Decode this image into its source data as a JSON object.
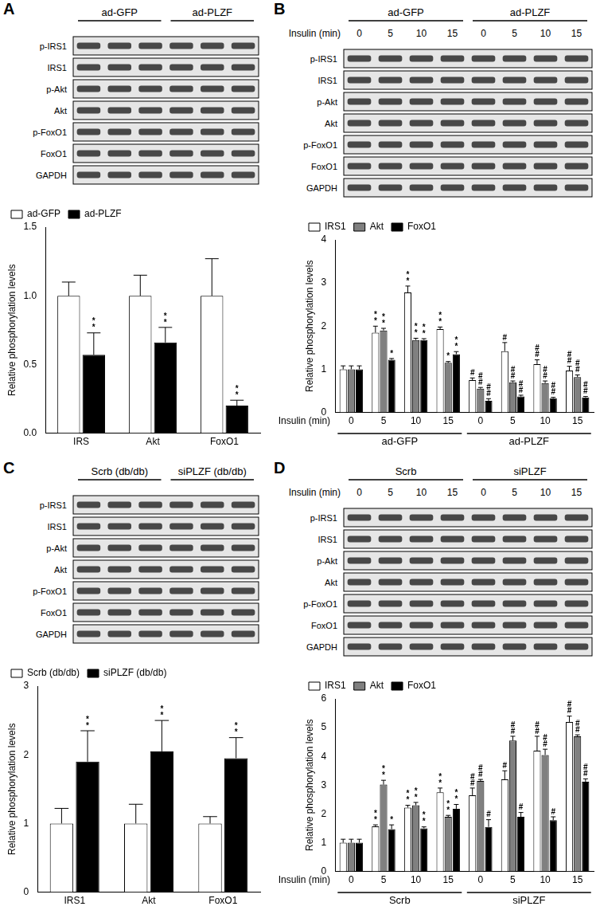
{
  "chart_data": [
    {
      "type": "bar",
      "title": "A",
      "categories": [
        "IRS",
        "Akt",
        "FoxO1"
      ],
      "y_label": "Relative phosphorylation levels",
      "ylim": [
        0,
        1.5
      ],
      "yticks": [
        {
          "value": 0,
          "label": "0.0"
        },
        {
          "value": 0.5,
          "label": "0.5"
        },
        {
          "value": 1,
          "label": "1.0"
        },
        {
          "value": 1.5,
          "label": "1.5"
        }
      ],
      "grid": false,
      "legend": "upper left",
      "series": [
        {
          "name": "ad-GFP",
          "color": "#ffffff",
          "values": [
            1,
            1,
            1
          ],
          "errors": [
            0.1,
            0.15,
            0.27
          ],
          "annotations": [
            null,
            null,
            null
          ]
        },
        {
          "name": "ad-PLZF",
          "color": "#000000",
          "values": [
            0.57,
            0.66,
            0.2
          ],
          "errors": [
            0.16,
            0.11,
            0.04
          ],
          "annotations": [
            "**",
            "**",
            "**"
          ]
        }
      ]
    },
    {
      "type": "bar",
      "title": "B",
      "categories": [
        "0",
        "5",
        "10",
        "15",
        "0",
        "5",
        "10",
        "15"
      ],
      "x_label": "Insulin (min)",
      "group_labels": [
        "ad-GFP",
        "ad-PLZF"
      ],
      "y_label": "Relative phosphorylation levels",
      "ylim": [
        0,
        4
      ],
      "yticks": [
        0,
        1,
        2,
        3,
        4
      ],
      "grid": false,
      "legend": "upper left",
      "series": [
        {
          "name": "IRS1",
          "color": "#ffffff",
          "values": [
            1,
            1.85,
            2.78,
            1.93,
            0.75,
            1.42,
            1.12,
            0.97
          ],
          "errors": [
            0.08,
            0.15,
            0.15,
            0.05,
            0.05,
            0.2,
            0.1,
            0.1
          ],
          "annotations": [
            null,
            "**",
            "**",
            "**",
            "#",
            "#",
            "##",
            "##"
          ]
        },
        {
          "name": "Akt",
          "color": "#808080",
          "values": [
            1,
            1.9,
            1.68,
            1.15,
            0.55,
            0.7,
            0.68,
            0.82
          ],
          "errors": [
            0.08,
            0.05,
            0.04,
            0.03,
            0.03,
            0.03,
            0.05,
            0.05
          ],
          "annotations": [
            null,
            "**",
            "**",
            "*",
            "##",
            "##",
            "##",
            "##"
          ]
        },
        {
          "name": "FoxO1",
          "color": "#000000",
          "values": [
            1,
            1.22,
            1.68,
            1.35,
            0.27,
            0.37,
            0.33,
            0.35
          ],
          "errors": [
            0.08,
            0.03,
            0.03,
            0.06,
            0.05,
            0.03,
            0.02,
            0.02
          ],
          "annotations": [
            null,
            "*",
            "**",
            "**",
            "##",
            "##",
            "##",
            "##"
          ]
        }
      ]
    },
    {
      "type": "bar",
      "title": "C",
      "categories": [
        "IRS1",
        "Akt",
        "FoxO1"
      ],
      "y_label": "Relative phosphorylation levels",
      "ylim": [
        0,
        3
      ],
      "yticks": [
        0,
        1,
        2,
        3
      ],
      "grid": false,
      "legend": "upper left",
      "series": [
        {
          "name": "Scrb (db/db)",
          "color": "#ffffff",
          "values": [
            1,
            1,
            1
          ],
          "errors": [
            0.22,
            0.28,
            0.1
          ],
          "annotations": [
            null,
            null,
            null
          ]
        },
        {
          "name": "siPLZF (db/db)",
          "color": "#000000",
          "values": [
            1.9,
            2.05,
            1.95
          ],
          "errors": [
            0.45,
            0.45,
            0.3
          ],
          "annotations": [
            "**",
            "**",
            "**"
          ]
        }
      ]
    },
    {
      "type": "bar",
      "title": "D",
      "categories": [
        "0",
        "5",
        "10",
        "15",
        "0",
        "5",
        "10",
        "15"
      ],
      "x_label": "Insulin (min)",
      "group_labels": [
        "Scrb",
        "siPLZF"
      ],
      "y_label": "Relative phosphorylation levels",
      "ylim": [
        0,
        6
      ],
      "yticks": [
        0,
        1,
        2,
        3,
        4,
        5,
        6
      ],
      "grid": false,
      "legend": "upper left",
      "series": [
        {
          "name": "IRS1",
          "color": "#ffffff",
          "values": [
            1,
            1.57,
            2.22,
            2.75,
            2.65,
            3.2,
            4.2,
            5.2
          ],
          "errors": [
            0.12,
            0.05,
            0.08,
            0.15,
            0.25,
            0.3,
            0.5,
            0.2
          ],
          "annotations": [
            null,
            "**",
            "**",
            "**",
            "##",
            "#",
            "##",
            "##"
          ]
        },
        {
          "name": "Akt",
          "color": "#808080",
          "values": [
            1,
            3.02,
            2.3,
            1.9,
            3.15,
            4.55,
            4.05,
            4.7
          ],
          "errors": [
            0.12,
            0.15,
            0.1,
            0.05,
            0.05,
            0.15,
            0.2,
            0.05
          ],
          "annotations": [
            null,
            "**",
            "**",
            "**",
            "##",
            "##",
            "##",
            "##"
          ]
        },
        {
          "name": "FoxO1",
          "color": "#000000",
          "values": [
            1,
            1.47,
            1.5,
            2.18,
            1.55,
            1.9,
            1.78,
            3.12
          ],
          "errors": [
            0.12,
            0.15,
            0.05,
            0.15,
            0.25,
            0.15,
            0.12,
            0.1
          ],
          "annotations": [
            null,
            "*",
            "**",
            "**",
            "#",
            "#",
            "#",
            "##"
          ]
        }
      ]
    }
  ],
  "blots": [
    {
      "groups": [
        "ad-GFP",
        "ad-PLZF"
      ],
      "rows": [
        "p-IRS1",
        "IRS1",
        "p-Akt",
        "Akt",
        "p-FoxO1",
        "FoxO1",
        "GAPDH"
      ]
    },
    {
      "groups": [
        "ad-GFP",
        "ad-PLZF"
      ],
      "lane_title": "Insulin (min)",
      "lane_labels": [
        "0",
        "5",
        "10",
        "15",
        "0",
        "5",
        "10",
        "15"
      ],
      "rows": [
        "p-IRS1",
        "IRS1",
        "p-Akt",
        "Akt",
        "p-FoxO1",
        "FoxO1",
        "GAPDH"
      ]
    },
    {
      "groups": [
        "Scrb (db/db)",
        "siPLZF (db/db)"
      ],
      "rows": [
        "p-IRS1",
        "IRS1",
        "p-Akt",
        "Akt",
        "p-FoxO1",
        "FoxO1",
        "GAPDH"
      ]
    },
    {
      "groups": [
        "Scrb",
        "siPLZF"
      ],
      "lane_title": "Insulin (min)",
      "lane_labels": [
        "0",
        "5",
        "10",
        "15",
        "0",
        "5",
        "10",
        "15"
      ],
      "rows": [
        "p-IRS1",
        "IRS1",
        "p-Akt",
        "Akt",
        "p-FoxO1",
        "FoxO1",
        "GAPDH"
      ]
    }
  ]
}
